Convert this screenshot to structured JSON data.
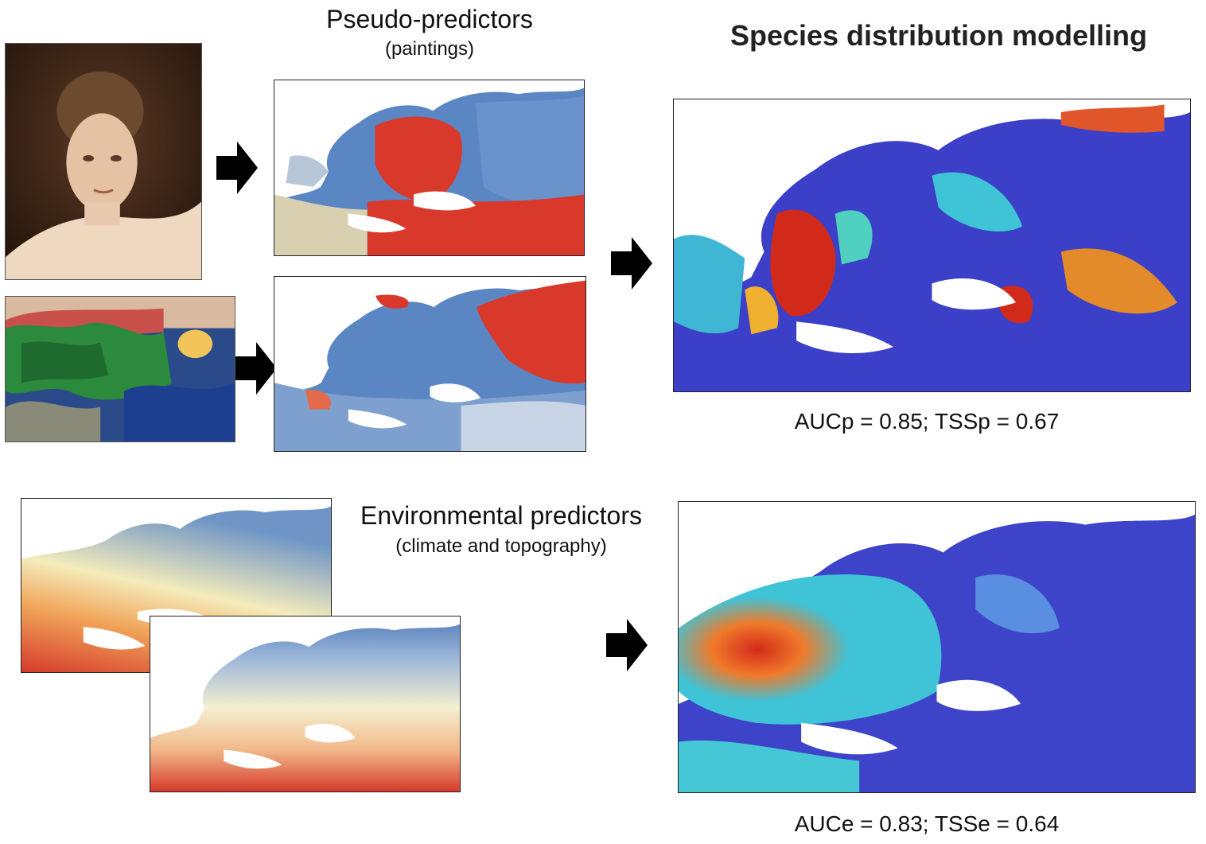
{
  "pseudo": {
    "title": "Pseudo-predictors",
    "subtitle": "(paintings)"
  },
  "sdm": {
    "title": "Species distribution modelling",
    "metric_paintings": "AUCp = 0.85; TSSp = 0.67",
    "metric_environment": "AUCe = 0.83; TSSe = 0.64"
  },
  "environment": {
    "title": "Environmental predictors",
    "subtitle": "(climate and topography)"
  },
  "colors": {
    "map_blue": "#4a7fc1",
    "map_red": "#d8392b",
    "map_yellow": "#f2eaa7",
    "sdm_blue": "#3c3fc7",
    "sdm_cyan": "#3fc3d7",
    "sdm_red": "#d22a1a"
  },
  "icons": [
    "arrow-right-icon",
    "painting-portrait",
    "painting-landscape"
  ]
}
